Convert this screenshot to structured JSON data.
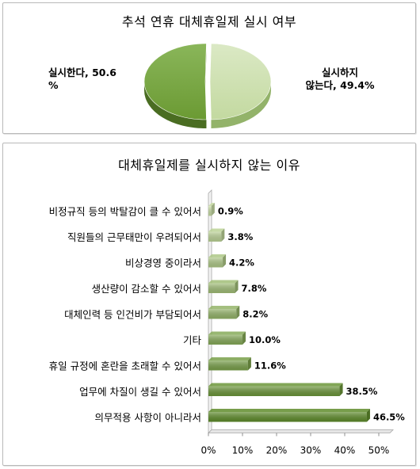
{
  "pie_chart": {
    "title": "추석 연휴 대체휴일제 실시 여부",
    "labels": [
      {
        "line1": "실시한다, 50.6",
        "line2": "%"
      },
      {
        "line1": "실시하지",
        "line2": "않는다, 49.4%"
      }
    ]
  },
  "bar_chart": {
    "title": "대체휴일제를 실시하지 않는 이유"
  },
  "colors": {
    "pie_dark": "#6b9a33",
    "pie_light": "#c3d9a0",
    "bar_light": "#c8dca5",
    "bar_dark": "#5f8c2b"
  },
  "chart_data": [
    {
      "type": "pie",
      "title": "추석 연휴 대체휴일제 실시 여부",
      "slices": [
        {
          "label": "실시한다",
          "value": 50.6
        },
        {
          "label": "실시하지 않는다",
          "value": 49.4
        }
      ]
    },
    {
      "type": "bar",
      "orientation": "horizontal",
      "title": "대체휴일제를 실시하지 않는 이유",
      "categories": [
        "비정규직 등의 박탈감이 클 수 있어서",
        "직원들의 근무태만이 우려되어서",
        "비상경영 중이라서",
        "생산량이 감소할 수 있어서",
        "대체인력 등 인건비가 부담되어서",
        "기타",
        "휴일 규정에 혼란을 초래할 수 있어서",
        "업무에 차질이 생길 수 있어서",
        "의무적용 사항이 아니라서"
      ],
      "values": [
        0.9,
        3.8,
        4.2,
        7.8,
        8.2,
        10.0,
        11.6,
        38.5,
        46.5
      ],
      "value_labels": [
        "0.9%",
        "3.8%",
        "4.2%",
        "7.8%",
        "8.2%",
        "10.0%",
        "11.6%",
        "38.5%",
        "46.5%"
      ],
      "xlim": [
        0,
        50
      ],
      "ticks": [
        0,
        10,
        20,
        30,
        40,
        50
      ],
      "tick_labels": [
        "0%",
        "10%",
        "20%",
        "30%",
        "40%",
        "50%"
      ],
      "grid": false,
      "legend": "none"
    }
  ]
}
